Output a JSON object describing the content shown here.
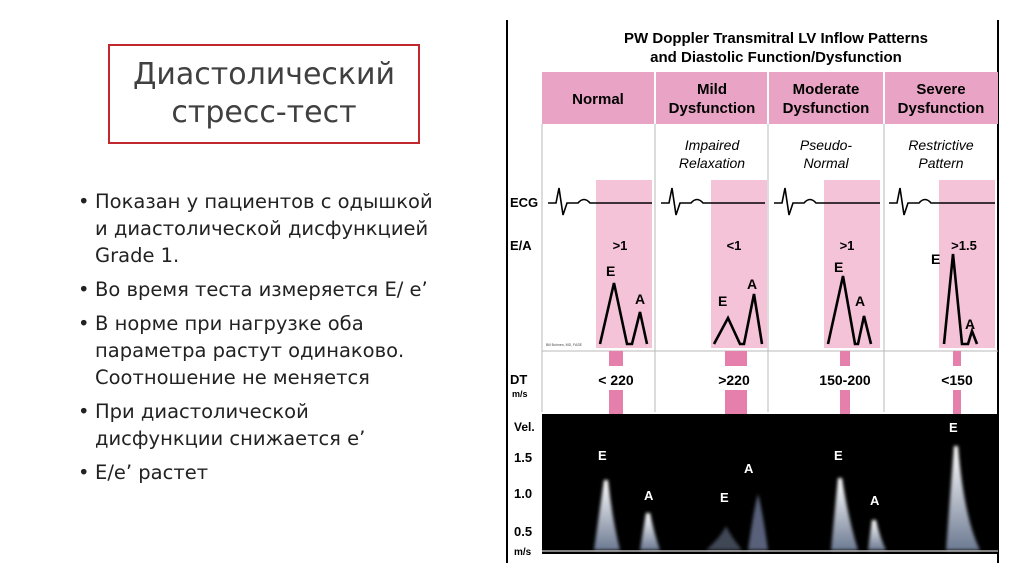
{
  "slide": {
    "title_line1": "Диастолический",
    "title_line2": "стресс-тест",
    "bullets": [
      "Показан у пациентов с одышкой и диастолической дисфункцией Grade 1.",
      "Во время теста измеряется E/ e’",
      "В норме при нагрузке оба параметра растут одинаково. Соотношение не меняется",
      "При диастолической дисфункции снижается e’",
      "E/e’ растет"
    ]
  },
  "figure": {
    "title_line1": "PW Doppler Transmitral LV Inflow Patterns",
    "title_line2": "and Diastolic Function/Dysfunction",
    "columns": [
      {
        "header1": "Normal",
        "header2": "",
        "pattern1": "",
        "pattern2": "",
        "ea": ">1",
        "dt": "< 220"
      },
      {
        "header1": "Mild",
        "header2": "Dysfunction",
        "pattern1": "Impaired",
        "pattern2": "Relaxation",
        "ea": "<1",
        "dt": ">220"
      },
      {
        "header1": "Moderate",
        "header2": "Dysfunction",
        "pattern1": "Pseudo-",
        "pattern2": "Normal",
        "ea": ">1",
        "dt": "150-200"
      },
      {
        "header1": "Severe",
        "header2": "Dysfunction",
        "pattern1": "Restrictive",
        "pattern2": "Pattern",
        "ea": ">1.5",
        "dt": "<150"
      }
    ],
    "row_labels": {
      "ecg": "ECG",
      "ea": "E/A",
      "dt": "DT",
      "dt_unit": "m/s"
    },
    "wave_labels": {
      "e": "E",
      "a": "A"
    },
    "credit": "Bill Bohnen, MD, FASE",
    "doppler": {
      "vel_label": "Vel.",
      "ticks": [
        "1.5",
        "1.0",
        "0.5"
      ],
      "unit": "m/s"
    },
    "colors": {
      "header": "#e9a3c4",
      "band": "#f5c3d8",
      "marker": "#e57fab",
      "dark": "#000000"
    }
  }
}
